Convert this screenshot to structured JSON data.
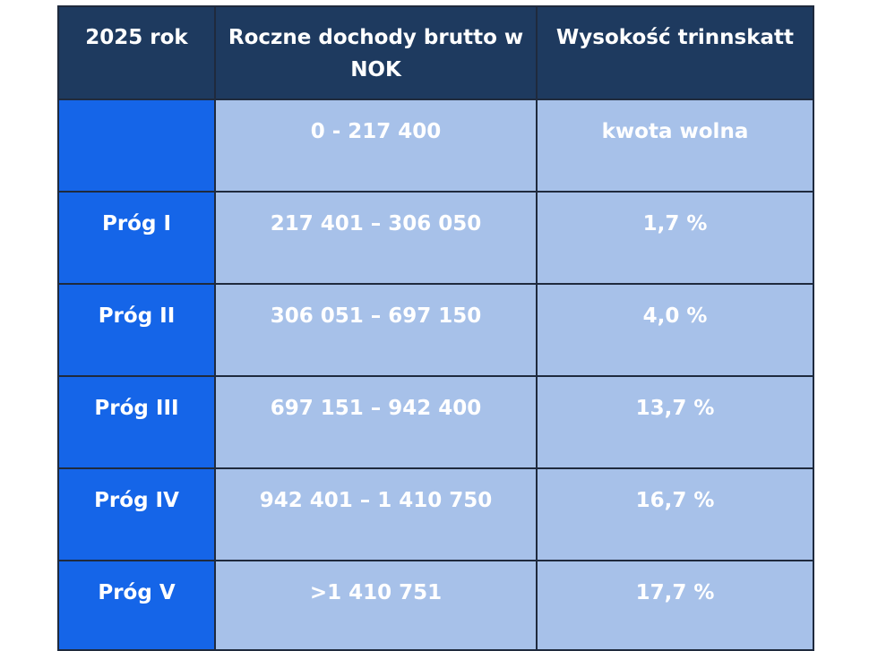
{
  "table": {
    "headers": [
      "2025 rok",
      "Roczne dochody brutto w NOK",
      "Wysokość trinnskatt"
    ],
    "rows": [
      {
        "label": "",
        "range": "0 - 217 400",
        "rate": "kwota wolna"
      },
      {
        "label": "Próg I",
        "range": "217 401 – 306 050",
        "rate": "1,7 %"
      },
      {
        "label": "Próg II",
        "range": "306 051 – 697 150",
        "rate": "4,0 %"
      },
      {
        "label": "Próg III",
        "range": "697 151 – 942 400",
        "rate": "13,7 %"
      },
      {
        "label": "Próg IV",
        "range": "942 401 – 1 410 750",
        "rate": "16,7 %"
      },
      {
        "label": "Próg V",
        "range": ">1 410 751",
        "rate": "17,7 %"
      }
    ]
  },
  "colors": {
    "header_bg": "#1e3a5f",
    "label_bg": "#1565e8",
    "value_bg": "#a7c1e9",
    "border": "#1f2a3d",
    "text": "#ffffff"
  }
}
